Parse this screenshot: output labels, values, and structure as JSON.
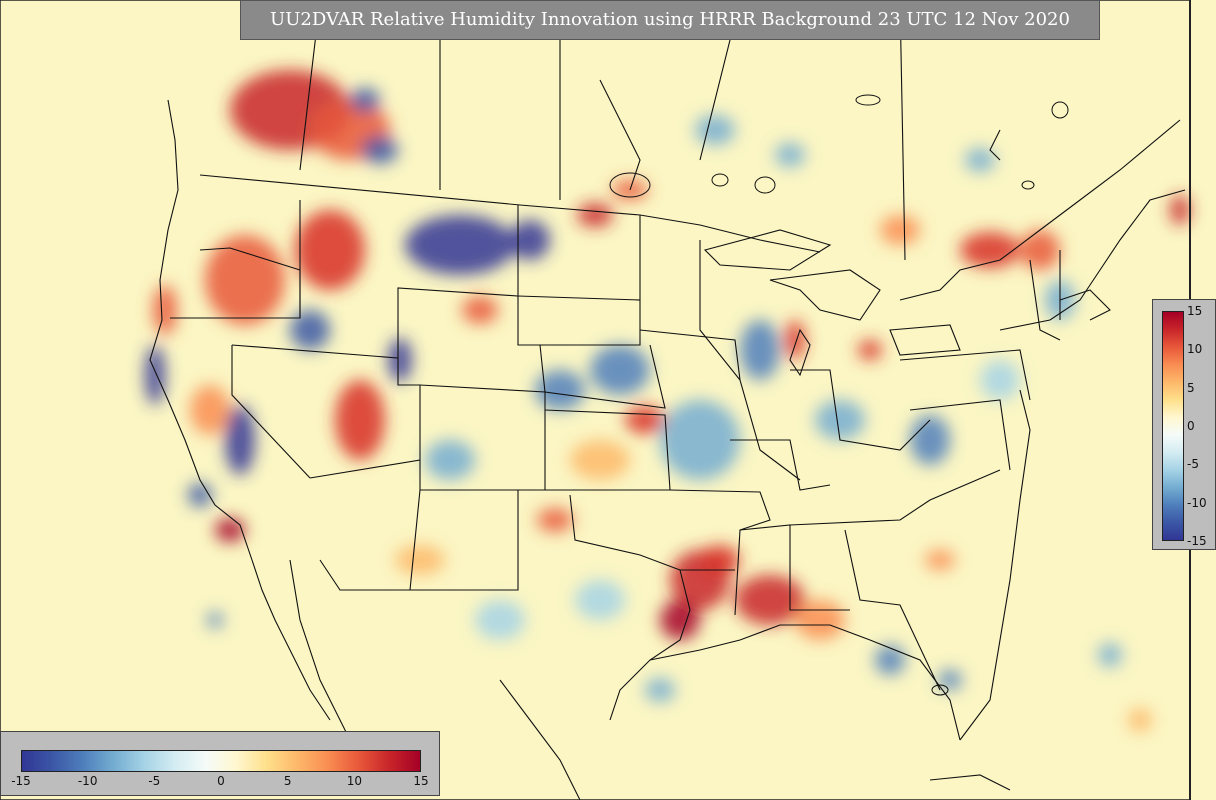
{
  "title": "UU2DVAR Relative Humidity Innovation using HRRR Background 23 UTC 12 Nov 2020",
  "colorbar": {
    "min": -15,
    "max": 15,
    "tick_labels": [
      "-15",
      "-10",
      "-5",
      "0",
      "5",
      "10",
      "15"
    ],
    "colors": [
      "#313695",
      "#3b57a6",
      "#4f7fbc",
      "#74add1",
      "#a6d3e6",
      "#d4ecf2",
      "#f5fbf8",
      "#fff7d0",
      "#fee08b",
      "#fdb86a",
      "#f98d52",
      "#e8583a",
      "#c8252a",
      "#a50026"
    ]
  }
}
